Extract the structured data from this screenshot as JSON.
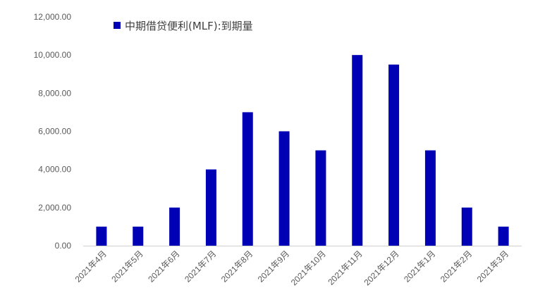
{
  "chart_data": {
    "type": "bar",
    "categories": [
      "2021年4月",
      "2021年5月",
      "2021年6月",
      "2021年7月",
      "2021年8月",
      "2021年9月",
      "2021年10月",
      "2021年11月",
      "2021年12月",
      "2021年1月",
      "2021年2月",
      "2021年3月"
    ],
    "series": [
      {
        "name": "中期借贷便利(MLF):到期量",
        "values": [
          1000,
          1000,
          2000,
          4000,
          7000,
          6000,
          5000,
          10000,
          9500,
          5000,
          2000,
          1000
        ]
      }
    ],
    "y_ticks": [
      "0.00",
      "2,000.00",
      "4,000.00",
      "6,000.00",
      "8,000.00",
      "10,000.00",
      "12,000.00"
    ],
    "ylim": [
      0,
      12000
    ],
    "grid": false,
    "legend_position": "top-left",
    "colors": {
      "bar": "#0000B4"
    }
  }
}
